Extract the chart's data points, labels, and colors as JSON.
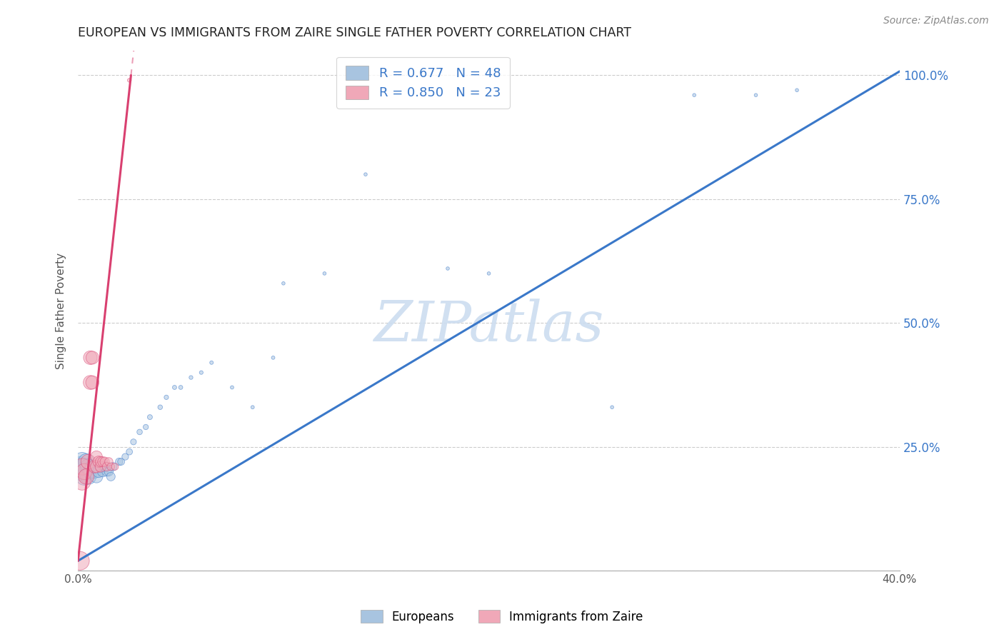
{
  "title": "EUROPEAN VS IMMIGRANTS FROM ZAIRE SINGLE FATHER POVERTY CORRELATION CHART",
  "source": "Source: ZipAtlas.com",
  "ylabel": "Single Father Poverty",
  "xlim": [
    0.0,
    0.4
  ],
  "ylim": [
    0.0,
    1.05
  ],
  "yticks": [
    0.0,
    0.25,
    0.5,
    0.75,
    1.0
  ],
  "ytick_labels": [
    "",
    "25.0%",
    "50.0%",
    "75.0%",
    "100.0%"
  ],
  "xticks": [
    0.0,
    0.05,
    0.1,
    0.15,
    0.2,
    0.25,
    0.3,
    0.35,
    0.4
  ],
  "xtick_labels": [
    "0.0%",
    "",
    "",
    "",
    "",
    "",
    "",
    "",
    "40.0%"
  ],
  "blue_R": 0.677,
  "blue_N": 48,
  "pink_R": 0.85,
  "pink_N": 23,
  "blue_color": "#a8c4e0",
  "pink_color": "#f0a8b8",
  "blue_line_color": "#3a78c9",
  "pink_line_color": "#d94070",
  "legend_text_color": "#3a78c9",
  "watermark": "ZIPatlas",
  "watermark_color": "#ccddf0",
  "blue_line_slope": 2.47,
  "blue_line_intercept": 0.02,
  "pink_line_slope": 38.0,
  "pink_line_intercept": 0.02,
  "blue_scatter_x": [
    0.001,
    0.002,
    0.002,
    0.003,
    0.003,
    0.004,
    0.004,
    0.005,
    0.005,
    0.006,
    0.007,
    0.008,
    0.009,
    0.01,
    0.011,
    0.012,
    0.013,
    0.014,
    0.015,
    0.016,
    0.017,
    0.02,
    0.021,
    0.023,
    0.025,
    0.027,
    0.03,
    0.033,
    0.035,
    0.04,
    0.043,
    0.047,
    0.05,
    0.055,
    0.06,
    0.065,
    0.075,
    0.085,
    0.095,
    0.1,
    0.12,
    0.14,
    0.18,
    0.2,
    0.26,
    0.3,
    0.33,
    0.35
  ],
  "blue_scatter_y": [
    0.21,
    0.2,
    0.22,
    0.19,
    0.21,
    0.2,
    0.22,
    0.19,
    0.21,
    0.2,
    0.21,
    0.2,
    0.19,
    0.2,
    0.21,
    0.2,
    0.21,
    0.2,
    0.2,
    0.19,
    0.21,
    0.22,
    0.22,
    0.23,
    0.24,
    0.26,
    0.28,
    0.29,
    0.31,
    0.33,
    0.35,
    0.37,
    0.37,
    0.39,
    0.4,
    0.42,
    0.37,
    0.33,
    0.43,
    0.58,
    0.6,
    0.8,
    0.61,
    0.6,
    0.33,
    0.96,
    0.96,
    0.97
  ],
  "pink_scatter_x": [
    0.001,
    0.002,
    0.002,
    0.003,
    0.004,
    0.005,
    0.006,
    0.006,
    0.007,
    0.007,
    0.008,
    0.009,
    0.009,
    0.01,
    0.011,
    0.011,
    0.012,
    0.013,
    0.014,
    0.015,
    0.016,
    0.018,
    0.025
  ],
  "pink_scatter_y": [
    0.02,
    0.18,
    0.21,
    0.2,
    0.19,
    0.22,
    0.38,
    0.43,
    0.38,
    0.43,
    0.21,
    0.21,
    0.23,
    0.22,
    0.21,
    0.22,
    0.22,
    0.22,
    0.21,
    0.22,
    0.21,
    0.21,
    0.99
  ],
  "blue_sizes": [
    400,
    350,
    350,
    300,
    280,
    270,
    260,
    250,
    240,
    220,
    200,
    180,
    160,
    140,
    120,
    110,
    100,
    90,
    80,
    75,
    70,
    55,
    50,
    45,
    40,
    35,
    30,
    28,
    25,
    22,
    20,
    18,
    17,
    15,
    14,
    13,
    12,
    12,
    12,
    11,
    11,
    11,
    11,
    11,
    11,
    11,
    11,
    11
  ],
  "pink_sizes": [
    350,
    300,
    280,
    260,
    240,
    220,
    200,
    190,
    180,
    170,
    160,
    150,
    140,
    130,
    120,
    110,
    100,
    90,
    80,
    70,
    60,
    50,
    15
  ]
}
